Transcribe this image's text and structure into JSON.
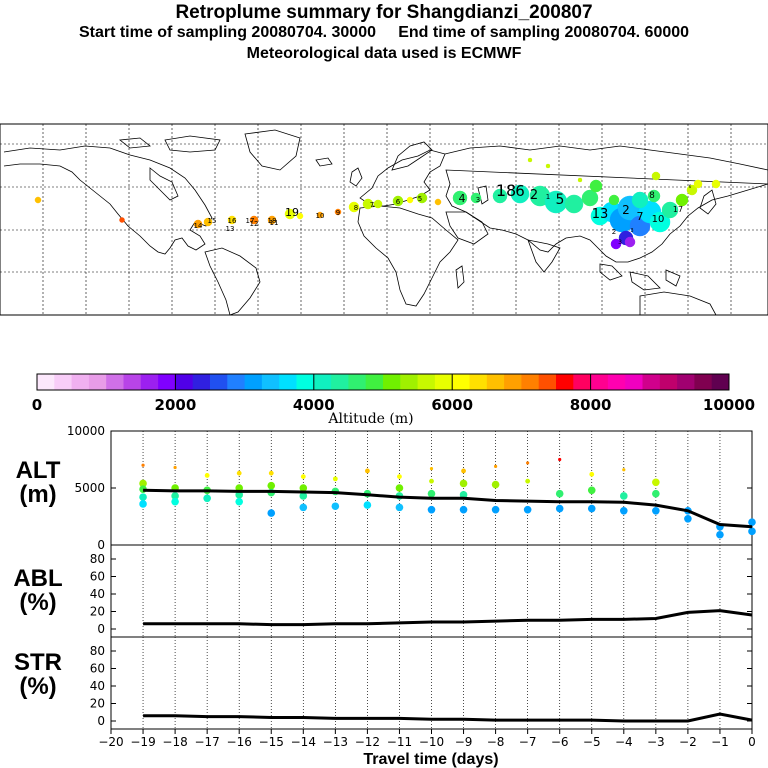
{
  "header": {
    "title": "Retroplume summary for Shangdianzi_200807",
    "start_label": "Start time of sampling 20080704. 30000",
    "end_label": "End time of sampling 20080704. 60000",
    "met_label": "Meteorological data used is ECMWF"
  },
  "chart_data": [
    {
      "type": "map",
      "title": "Retroplume trajectory map",
      "point_labels": [
        "19",
        "18",
        "17",
        "16",
        "15",
        "14",
        "13",
        "12",
        "11",
        "10",
        "9",
        "8",
        "7",
        "6",
        "5",
        "4",
        "3",
        "2",
        "1"
      ],
      "colorbar": {
        "title": "Altitude (m)",
        "range": [
          0,
          10000
        ],
        "tick_labels": [
          "0",
          "2000",
          "4000",
          "6000",
          "8000",
          "10000"
        ],
        "colors": [
          "#fce8fc",
          "#f8cdf8",
          "#f0b0f0",
          "#e89ce8",
          "#d070e8",
          "#b844e8",
          "#9c20f0",
          "#8000ff",
          "#5000e8",
          "#3020e0",
          "#2050f0",
          "#2080ff",
          "#00a0ff",
          "#10c0ff",
          "#00e0ff",
          "#00ffe0",
          "#10f0c0",
          "#20f0a0",
          "#30f070",
          "#40f040",
          "#70f000",
          "#a0f000",
          "#c8f800",
          "#e8ff00",
          "#ffff00",
          "#ffe000",
          "#ffc000",
          "#ffa000",
          "#ff8000",
          "#ff5000",
          "#ff0000",
          "#ff0060",
          "#ff0090",
          "#ff00b0",
          "#f000c0",
          "#d0008c",
          "#c0006c",
          "#a00070",
          "#800050",
          "#600050"
        ]
      }
    },
    {
      "type": "scatter",
      "panel": "ALT",
      "ylabel": "ALT",
      "yunit": "(m)",
      "ylim": [
        0,
        10000
      ],
      "yticks": [
        "10000",
        "5000",
        "0"
      ],
      "xlim": [
        -20,
        0
      ],
      "line": {
        "x": [
          -19,
          -18,
          -17,
          -16,
          -15,
          -14,
          -13,
          -12,
          -11,
          -10,
          -9,
          -8,
          -7,
          -6,
          -5,
          -4,
          -3,
          -2,
          -1,
          0
        ],
        "y": [
          4800,
          4750,
          4750,
          4700,
          4700,
          4650,
          4600,
          4400,
          4200,
          4100,
          4100,
          3900,
          3850,
          3800,
          3800,
          3750,
          3500,
          3000,
          1800,
          1600
        ]
      },
      "points": {
        "x": [
          -19,
          -19,
          -19,
          -19,
          -19,
          -18,
          -18,
          -18,
          -18,
          -17,
          -17,
          -17,
          -16,
          -16,
          -16,
          -16,
          -15,
          -15,
          -15,
          -15,
          -14,
          -14,
          -14,
          -14,
          -13,
          -13,
          -13,
          -12,
          -12,
          -12,
          -11,
          -11,
          -11,
          -11,
          -10,
          -10,
          -10,
          -10,
          -9,
          -9,
          -9,
          -9,
          -8,
          -8,
          -8,
          -7,
          -7,
          -7,
          -6,
          -6,
          -6,
          -5,
          -5,
          -5,
          -4,
          -4,
          -4,
          -3,
          -3,
          -3,
          -2,
          -2,
          -1,
          -1,
          0,
          0
        ],
        "y": [
          7000,
          5400,
          4900,
          4200,
          3600,
          6800,
          5000,
          4300,
          3800,
          6100,
          4800,
          4100,
          6300,
          5000,
          4400,
          3800,
          6300,
          5200,
          4600,
          2800,
          6000,
          5000,
          4300,
          3300,
          5800,
          4700,
          3400,
          6500,
          4500,
          3500,
          6000,
          5000,
          4300,
          3300,
          6700,
          5600,
          4500,
          3100,
          6500,
          5400,
          4400,
          3100,
          6900,
          5300,
          3100,
          7200,
          5600,
          3100,
          7500,
          4500,
          3200,
          6200,
          4800,
          3200,
          6600,
          4300,
          3000,
          5500,
          4500,
          3000,
          3000,
          2300,
          1600,
          900,
          2000,
          1200
        ]
      }
    },
    {
      "type": "line",
      "panel": "ABL",
      "ylabel": "ABL",
      "yunit": "(%)",
      "ylim": [
        0,
        100
      ],
      "yticks": [
        "80",
        "60",
        "40",
        "20",
        "0"
      ],
      "xlim": [
        -20,
        0
      ],
      "x": [
        -19,
        -18,
        -17,
        -16,
        -15,
        -14,
        -13,
        -12,
        -11,
        -10,
        -9,
        -8,
        -7,
        -6,
        -5,
        -4,
        -3,
        -2,
        -1,
        0
      ],
      "y": [
        6,
        6,
        6,
        6,
        5,
        5,
        6,
        6,
        7,
        8,
        8,
        9,
        10,
        10,
        11,
        11,
        12,
        19,
        21,
        16
      ]
    },
    {
      "type": "line",
      "panel": "STR",
      "ylabel": "STR",
      "yunit": "(%)",
      "ylim": [
        0,
        100
      ],
      "yticks": [
        "80",
        "60",
        "40",
        "20",
        "0"
      ],
      "xlim": [
        -20,
        0
      ],
      "xlabel": "Travel time (days)",
      "xticks": [
        "-20",
        "-19",
        "-18",
        "-17",
        "-16",
        "-15",
        "-14",
        "-13",
        "-12",
        "-11",
        "-10",
        "-9",
        "-8",
        "-7",
        "-6",
        "-5",
        "-4",
        "-3",
        "-2",
        "-1",
        "0"
      ],
      "x": [
        -19,
        -18,
        -17,
        -16,
        -15,
        -14,
        -13,
        -12,
        -11,
        -10,
        -9,
        -8,
        -7,
        -6,
        -5,
        -4,
        -3,
        -2,
        -1,
        0
      ],
      "y": [
        6,
        6,
        5,
        5,
        4,
        4,
        3,
        3,
        3,
        2,
        2,
        1,
        1,
        1,
        1,
        0,
        0,
        0,
        8,
        1
      ]
    }
  ]
}
